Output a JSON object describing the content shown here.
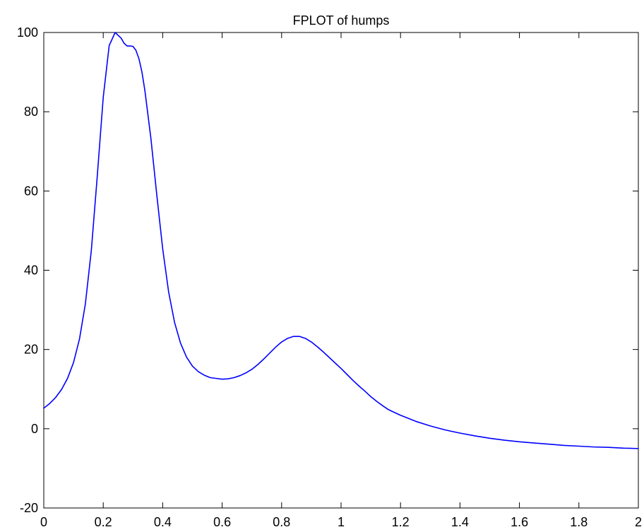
{
  "chart_data": {
    "type": "line",
    "title": "FPLOT of humps",
    "xlabel": "",
    "ylabel": "",
    "xlim": [
      0,
      2
    ],
    "ylim": [
      -20,
      100
    ],
    "xticks": [
      0,
      0.2,
      0.4,
      0.6,
      0.8,
      1,
      1.2,
      1.4,
      1.6,
      1.8,
      2
    ],
    "xtick_labels": [
      "0",
      "0.2",
      "0.4",
      "0.6",
      "0.8",
      "1",
      "1.2",
      "1.4",
      "1.6",
      "1.8",
      "2"
    ],
    "yticks": [
      -20,
      0,
      20,
      40,
      60,
      80,
      100
    ],
    "ytick_labels": [
      "-20",
      "0",
      "20",
      "40",
      "60",
      "80",
      "100"
    ],
    "grid": false,
    "series": [
      {
        "color": "#0000ff",
        "x": [
          0,
          0.02,
          0.04,
          0.06,
          0.08,
          0.1,
          0.12,
          0.14,
          0.16,
          0.18,
          0.2,
          0.22,
          0.24,
          0.26,
          0.27,
          0.28,
          0.29,
          0.3,
          0.31,
          0.32,
          0.33,
          0.34,
          0.36,
          0.38,
          0.4,
          0.42,
          0.44,
          0.46,
          0.48,
          0.5,
          0.52,
          0.54,
          0.56,
          0.58,
          0.6,
          0.62,
          0.64,
          0.66,
          0.68,
          0.7,
          0.72,
          0.74,
          0.76,
          0.78,
          0.8,
          0.82,
          0.84,
          0.86,
          0.88,
          0.9,
          0.92,
          0.94,
          0.96,
          0.98,
          1.0,
          1.02,
          1.04,
          1.06,
          1.08,
          1.1,
          1.12,
          1.14,
          1.16,
          1.18,
          1.2,
          1.25,
          1.3,
          1.35,
          1.4,
          1.45,
          1.5,
          1.55,
          1.6,
          1.65,
          1.7,
          1.75,
          1.8,
          1.85,
          1.9,
          1.95,
          2.0
        ],
        "y": [
          5.18,
          6.37,
          7.9,
          9.94,
          12.73,
          16.7,
          22.6,
          31.56,
          45.06,
          63.82,
          83.64,
          96.7,
          100.34,
          98.58,
          97.3,
          96.6,
          96.6,
          96.5,
          95.5,
          93.4,
          90.1,
          85.4,
          73.5,
          59.1,
          45.4,
          34.5,
          26.8,
          21.6,
          18.1,
          15.8,
          14.4,
          13.5,
          12.9,
          12.7,
          12.5,
          12.6,
          12.9,
          13.4,
          14.1,
          15.0,
          16.2,
          17.6,
          19.1,
          20.6,
          21.9,
          22.8,
          23.3,
          23.3,
          22.8,
          21.9,
          20.7,
          19.4,
          18.0,
          16.6,
          15.2,
          13.7,
          12.2,
          10.8,
          9.5,
          8.1,
          6.9,
          5.8,
          4.8,
          4.1,
          3.4,
          1.9,
          0.7,
          -0.3,
          -1.1,
          -1.8,
          -2.4,
          -2.9,
          -3.3,
          -3.6,
          -3.9,
          -4.2,
          -4.4,
          -4.6,
          -4.7,
          -4.9,
          -5.0
        ]
      }
    ]
  }
}
